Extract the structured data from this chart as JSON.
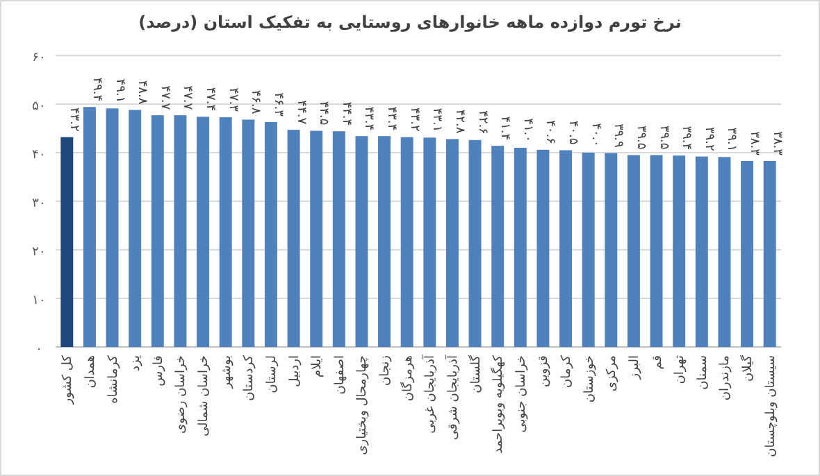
{
  "chart_data": {
    "type": "bar",
    "title": "نرخ تورم دوازده ماهه خانوارهای روستایی به تفکیک استان (درصد)",
    "categories": [
      "کل کشور",
      "همدان",
      "کرمانشاه",
      "یزد",
      "فارس",
      "خراسان رضوی",
      "خراسان شمالی",
      "بوشهر",
      "کردستان",
      "لرستان",
      "اردبیل",
      "ایلام",
      "اصفهان",
      "چهارمحال وبختیاری",
      "زنجان",
      "هرمزگان",
      "آذربایجان غربی",
      "آذربایجان شرقی",
      "گلستان",
      "کهگیلویه وبویراحمد",
      "خراسان جنوبی",
      "قزوین",
      "کرمان",
      "خوزستان",
      "مرکزی",
      "البرز",
      "قم",
      "تهران",
      "سمنان",
      "مازندران",
      "گیلان",
      "سیستان وبلوچستان"
    ],
    "values": [
      43.2,
      49.4,
      49.1,
      48.8,
      47.7,
      47.7,
      47.4,
      47.3,
      46.8,
      46.3,
      44.7,
      44.5,
      44.4,
      43.4,
      43.4,
      43.2,
      43.1,
      42.8,
      42.6,
      41.4,
      41.0,
      40.6,
      40.5,
      40.0,
      39.9,
      39.5,
      39.5,
      39.4,
      39.2,
      39.1,
      38.3,
      38.3
    ],
    "value_labels": [
      "۴۳.۲",
      "۴۹.۴",
      "۴۹.۱",
      "۴۸.۸",
      "۴۷.۷",
      "۴۷.۷",
      "۴۷.۴",
      "۴۷.۳",
      "۴۶.۸",
      "۴۶.۳",
      "۴۴.۷",
      "۴۴.۵",
      "۴۴.۴",
      "۴۳.۴",
      "۴۳.۴",
      "۴۳.۲",
      "۴۳.۱",
      "۴۲.۸",
      "۴۲.۶",
      "۴۱.۴",
      "۴۱.۰",
      "۴۰.۶",
      "۴۰.۵",
      "۴۰.۰",
      "۳۹.۹",
      "۳۹.۵",
      "۳۹.۵",
      "۳۹.۴",
      "۳۹.۲",
      "۳۹.۱",
      "۳۸.۳",
      "۳۸.۳"
    ],
    "colors": [
      "#1f497d",
      "#4f81bd",
      "#4f81bd",
      "#4f81bd",
      "#4f81bd",
      "#4f81bd",
      "#4f81bd",
      "#4f81bd",
      "#4f81bd",
      "#4f81bd",
      "#4f81bd",
      "#4f81bd",
      "#4f81bd",
      "#4f81bd",
      "#4f81bd",
      "#4f81bd",
      "#4f81bd",
      "#4f81bd",
      "#4f81bd",
      "#4f81bd",
      "#4f81bd",
      "#4f81bd",
      "#4f81bd",
      "#4f81bd",
      "#4f81bd",
      "#4f81bd",
      "#4f81bd",
      "#4f81bd",
      "#4f81bd",
      "#4f81bd",
      "#4f81bd",
      "#4f81bd"
    ],
    "ylim": [
      0,
      60
    ],
    "yticks": [
      {
        "value": 0,
        "label": "۰"
      },
      {
        "value": 10,
        "label": "۱۰"
      },
      {
        "value": 20,
        "label": "۲۰"
      },
      {
        "value": 30,
        "label": "۳۰"
      },
      {
        "value": 40,
        "label": "۴۰"
      },
      {
        "value": 50,
        "label": "۵۰"
      },
      {
        "value": 60,
        "label": "۶۰"
      }
    ],
    "grid": "y"
  }
}
